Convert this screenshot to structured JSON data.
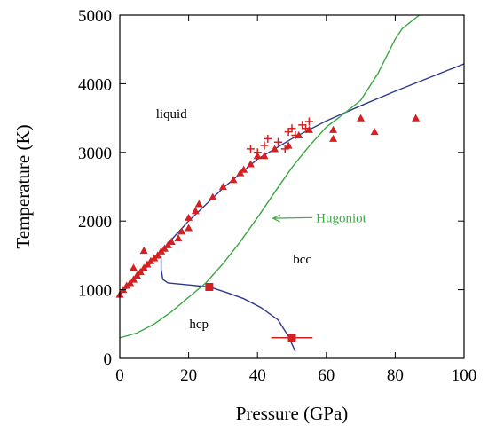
{
  "chart_data": {
    "type": "scatter",
    "xlabel": "Pressure (GPa)",
    "ylabel": "Temperature (K)",
    "xlim": [
      0,
      100
    ],
    "ylim": [
      0,
      5000
    ],
    "xticks": [
      0,
      20,
      40,
      60,
      80,
      100
    ],
    "yticks": [
      0,
      1000,
      2000,
      3000,
      4000,
      5000
    ],
    "grid": false,
    "region_labels": [
      {
        "text": "liquid",
        "x": 15,
        "y": 3500
      },
      {
        "text": "bcc",
        "x": 53,
        "y": 1380
      },
      {
        "text": "hcp",
        "x": 23,
        "y": 440
      }
    ],
    "annotations": [
      {
        "text": "Hugoniot",
        "x": 57,
        "y": 2050,
        "arrow_to": [
          44,
          2040
        ],
        "color": "#3aa843"
      }
    ],
    "series": [
      {
        "kind": "line",
        "color": "#2f3a8f",
        "points": [
          [
            0,
            920
          ],
          [
            5,
            1180
          ],
          [
            10,
            1440
          ],
          [
            15,
            1730
          ],
          [
            20,
            2000
          ],
          [
            30,
            2480
          ],
          [
            40,
            2900
          ],
          [
            50,
            3200
          ],
          [
            60,
            3460
          ],
          [
            70,
            3680
          ],
          [
            80,
            3890
          ],
          [
            90,
            4090
          ],
          [
            100,
            4290
          ]
        ]
      },
      {
        "kind": "line",
        "color": "#2f3a8f",
        "points": [
          [
            12,
            1480
          ],
          [
            12,
            1300
          ],
          [
            12.5,
            1150
          ],
          [
            14,
            1100
          ],
          [
            20,
            1070
          ],
          [
            26,
            1040
          ],
          [
            31,
            960
          ],
          [
            36,
            870
          ],
          [
            41,
            740
          ],
          [
            46,
            560
          ],
          [
            49,
            320
          ],
          [
            51,
            100
          ]
        ]
      },
      {
        "kind": "line",
        "color": "#3aa843",
        "points": [
          [
            0,
            300
          ],
          [
            5,
            370
          ],
          [
            10,
            500
          ],
          [
            15,
            680
          ],
          [
            20,
            890
          ],
          [
            25,
            1100
          ],
          [
            30,
            1380
          ],
          [
            35,
            1700
          ],
          [
            40,
            2050
          ],
          [
            45,
            2420
          ],
          [
            50,
            2780
          ],
          [
            55,
            3090
          ],
          [
            60,
            3370
          ],
          [
            65,
            3560
          ],
          [
            70,
            3760
          ],
          [
            75,
            4150
          ],
          [
            80,
            4650
          ],
          [
            82,
            4800
          ],
          [
            87,
            5000
          ]
        ]
      },
      {
        "kind": "marker",
        "marker": "triangle",
        "color": "#d42020",
        "points": [
          [
            0,
            930
          ],
          [
            1,
            1000
          ],
          [
            2,
            1060
          ],
          [
            3,
            1100
          ],
          [
            4,
            1150
          ],
          [
            5,
            1210
          ],
          [
            6,
            1260
          ],
          [
            7,
            1320
          ],
          [
            8,
            1370
          ],
          [
            9,
            1420
          ],
          [
            10,
            1460
          ],
          [
            11,
            1500
          ],
          [
            12,
            1560
          ],
          [
            13,
            1600
          ],
          [
            14,
            1650
          ],
          [
            15,
            1700
          ],
          [
            7,
            1570
          ],
          [
            4,
            1320
          ],
          [
            17,
            1750
          ],
          [
            18,
            1850
          ],
          [
            20,
            1900
          ],
          [
            20,
            2050
          ],
          [
            22,
            2150
          ],
          [
            23,
            2250
          ],
          [
            27,
            2350
          ],
          [
            30,
            2500
          ],
          [
            33,
            2600
          ],
          [
            35,
            2700
          ],
          [
            36,
            2750
          ],
          [
            38,
            2830
          ],
          [
            40,
            2950
          ],
          [
            42,
            2950
          ],
          [
            45,
            3050
          ],
          [
            49,
            3100
          ],
          [
            52,
            3250
          ],
          [
            55,
            3330
          ],
          [
            62,
            3330
          ],
          [
            62,
            3200
          ],
          [
            70,
            3500
          ],
          [
            74,
            3300
          ],
          [
            86,
            3500
          ]
        ]
      },
      {
        "kind": "marker",
        "marker": "plus",
        "color": "#d42020",
        "points": [
          [
            38,
            3050
          ],
          [
            40,
            3000
          ],
          [
            42,
            3100
          ],
          [
            43,
            3200
          ],
          [
            46,
            3150
          ],
          [
            48,
            3050
          ],
          [
            49,
            3300
          ],
          [
            50,
            3350
          ],
          [
            51,
            3250
          ],
          [
            53,
            3400
          ],
          [
            54,
            3350
          ],
          [
            55,
            3450
          ]
        ]
      },
      {
        "kind": "marker",
        "marker": "square",
        "color": "#d42020",
        "points": [
          [
            26,
            1040
          ],
          [
            50,
            300
          ]
        ],
        "xerr": [
          0,
          6
        ]
      }
    ]
  }
}
